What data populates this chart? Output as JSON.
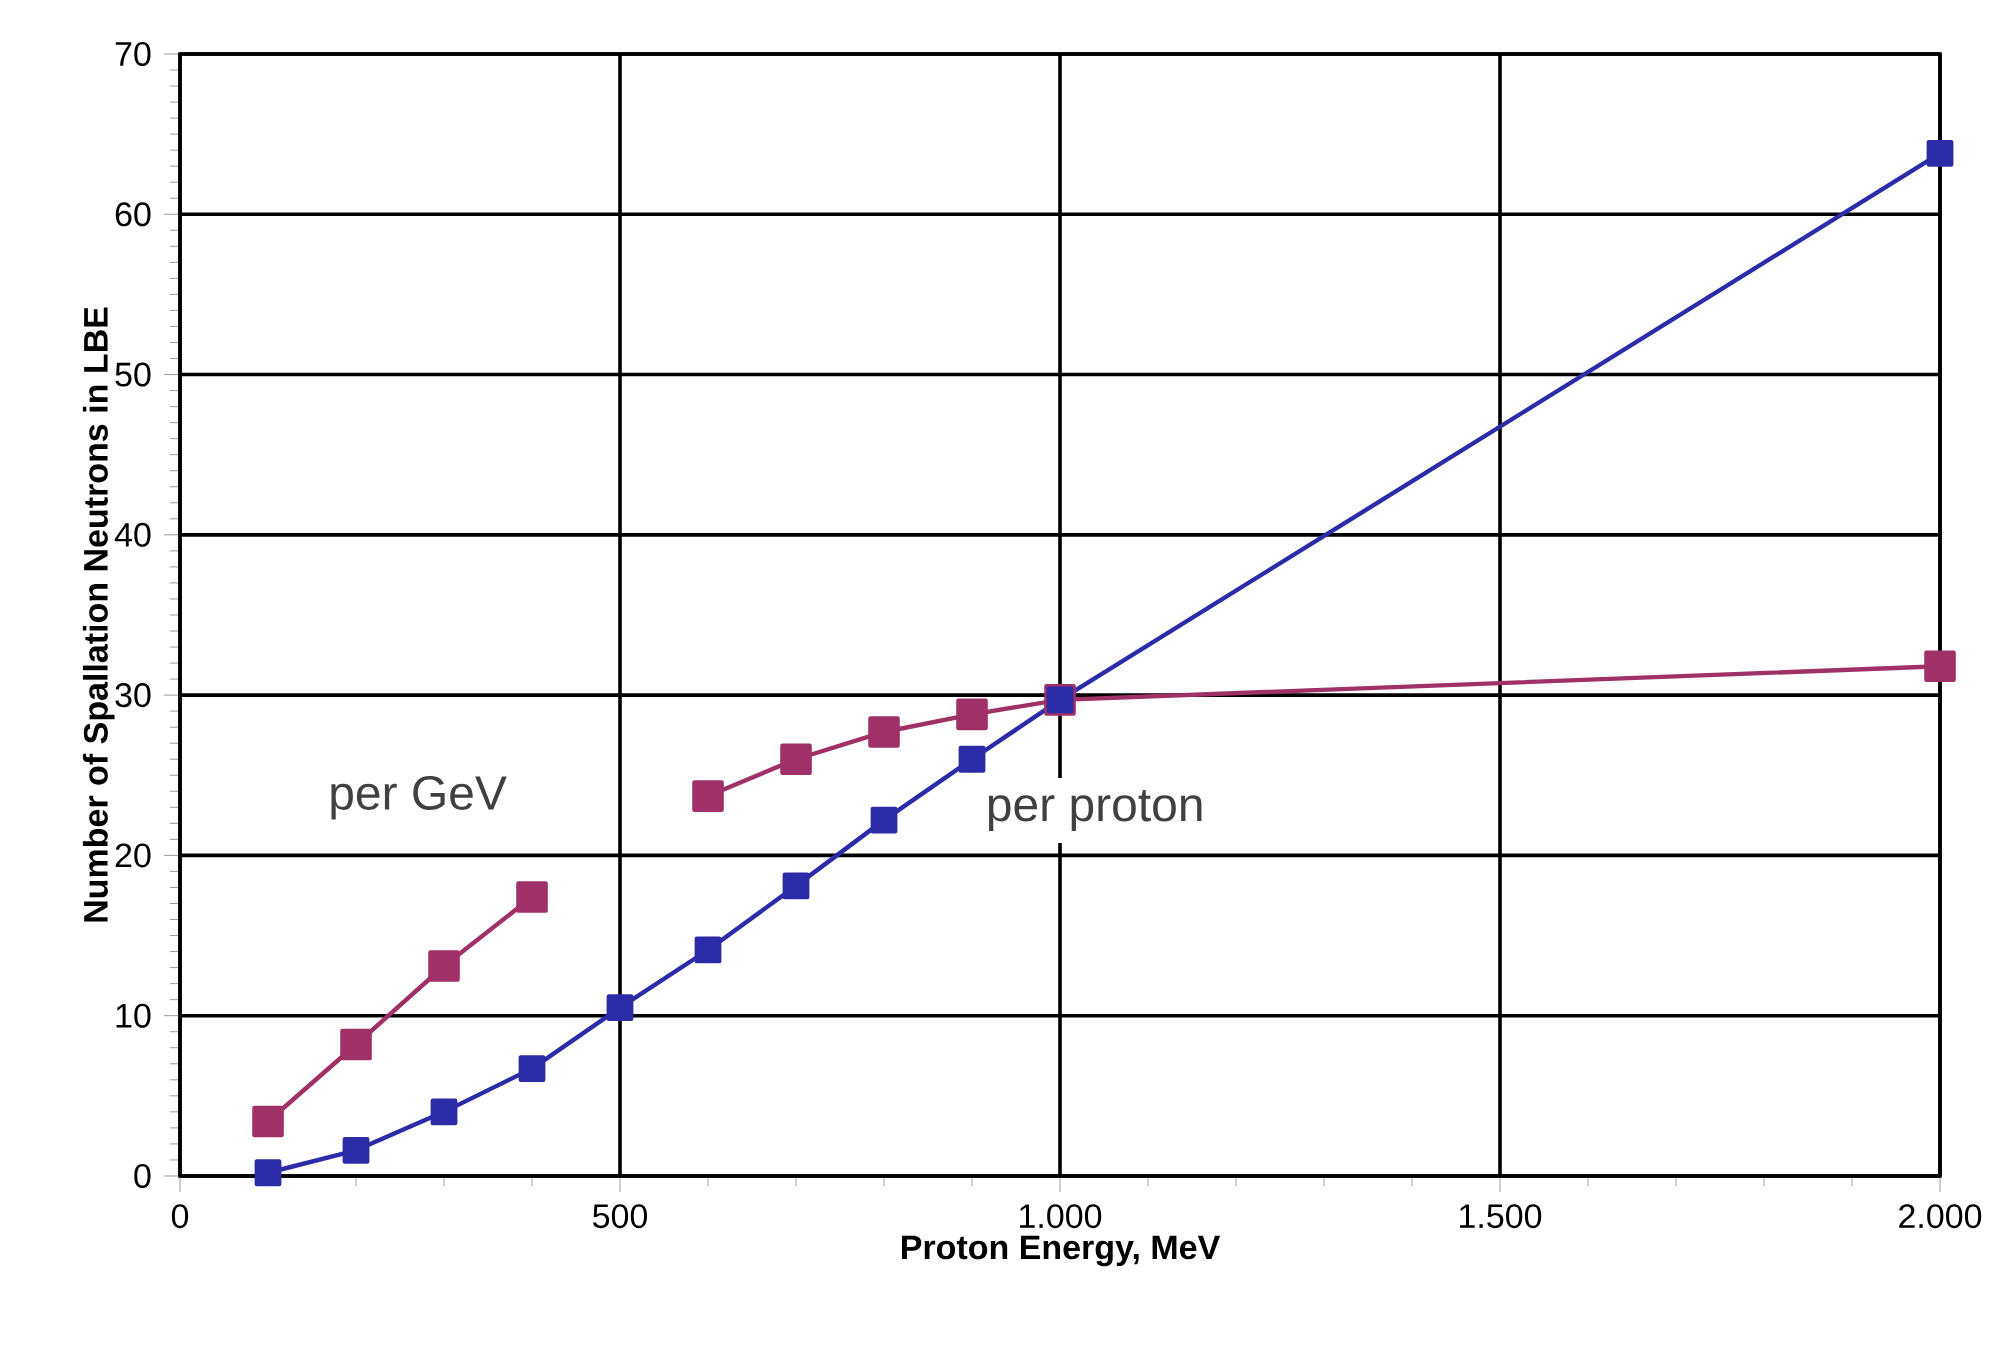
{
  "chart_data": {
    "type": "line",
    "xlabel": "Proton Energy, MeV",
    "ylabel": "Number of Spallation Neutrons in LBE",
    "x": [
      100,
      200,
      300,
      400,
      500,
      600,
      700,
      800,
      900,
      1000,
      2000
    ],
    "series": [
      {
        "name": "per GeV",
        "color": "#a03068",
        "values": [
          3.4,
          8.2,
          13.1,
          17.4,
          null,
          23.7,
          26.0,
          27.7,
          28.8,
          29.7,
          31.8
        ]
      },
      {
        "name": "per proton",
        "color": "#2c2ca8",
        "values": [
          0.2,
          1.6,
          4.0,
          6.7,
          10.5,
          14.1,
          18.1,
          22.2,
          26.0,
          29.7,
          63.8
        ]
      }
    ],
    "xlim": [
      0,
      2000
    ],
    "xticks": [
      0,
      500,
      {
        "value": 1000,
        "label": "1.000"
      },
      {
        "value": 1500,
        "label": "1.500"
      },
      {
        "value": 2000,
        "label": "2.000"
      }
    ],
    "ylim": [
      0,
      70
    ],
    "yticks": [
      0,
      10,
      20,
      30,
      40,
      50,
      60,
      70
    ],
    "grid": true,
    "legend": false,
    "marker": "square",
    "line_style": "solid"
  }
}
